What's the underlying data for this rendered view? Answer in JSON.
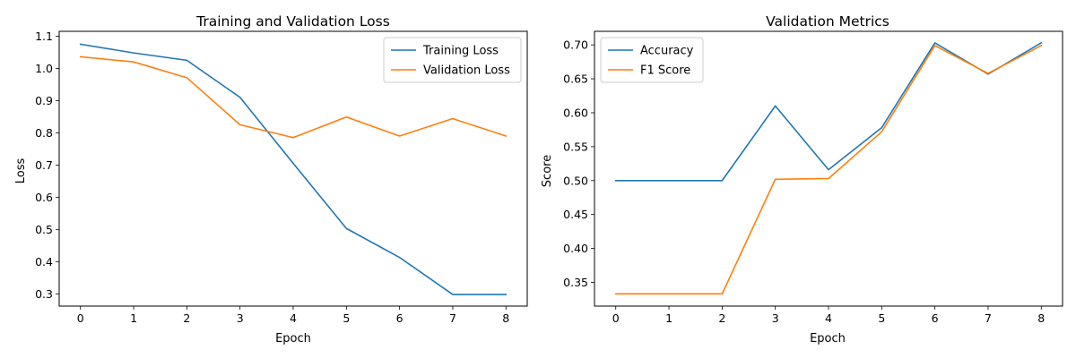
{
  "chart_data": [
    {
      "type": "line",
      "title": "Training and Validation Loss",
      "xlabel": "Epoch",
      "ylabel": "Loss",
      "x": [
        0,
        1,
        2,
        3,
        4,
        5,
        6,
        7,
        8
      ],
      "xticks": [
        "0",
        "1",
        "2",
        "3",
        "4",
        "5",
        "6",
        "7",
        "8"
      ],
      "xlim": [
        -0.4,
        8.4
      ],
      "yticks": [
        "0.3",
        "0.4",
        "0.5",
        "0.6",
        "0.7",
        "0.8",
        "0.9",
        "1.0",
        "1.1"
      ],
      "ylim": [
        0.262,
        1.115
      ],
      "grid": false,
      "legend_position": "top-right",
      "series": [
        {
          "name": "Training Loss",
          "color": "#1f77b4",
          "values": [
            1.075,
            1.048,
            1.025,
            0.91,
            0.705,
            0.503,
            0.413,
            0.298,
            0.298
          ]
        },
        {
          "name": "Validation Loss",
          "color": "#ff7f0e",
          "values": [
            1.036,
            1.02,
            0.971,
            0.825,
            0.785,
            0.849,
            0.79,
            0.844,
            0.79
          ]
        }
      ]
    },
    {
      "type": "line",
      "title": "Validation Metrics",
      "xlabel": "Epoch",
      "ylabel": "Score",
      "x": [
        0,
        1,
        2,
        3,
        4,
        5,
        6,
        7,
        8
      ],
      "xticks": [
        "0",
        "1",
        "2",
        "3",
        "4",
        "5",
        "6",
        "7",
        "8"
      ],
      "xlim": [
        -0.4,
        8.4
      ],
      "yticks": [
        "0.35",
        "0.40",
        "0.45",
        "0.50",
        "0.55",
        "0.60",
        "0.65",
        "0.70"
      ],
      "ylim": [
        0.315,
        0.72
      ],
      "grid": false,
      "legend_position": "top-left",
      "series": [
        {
          "name": "Accuracy",
          "color": "#1f77b4",
          "values": [
            0.5,
            0.5,
            0.5,
            0.61,
            0.516,
            0.578,
            0.703,
            0.657,
            0.703
          ]
        },
        {
          "name": "F1 Score",
          "color": "#ff7f0e",
          "values": [
            0.333,
            0.333,
            0.333,
            0.502,
            0.503,
            0.572,
            0.699,
            0.658,
            0.699
          ]
        }
      ]
    }
  ]
}
